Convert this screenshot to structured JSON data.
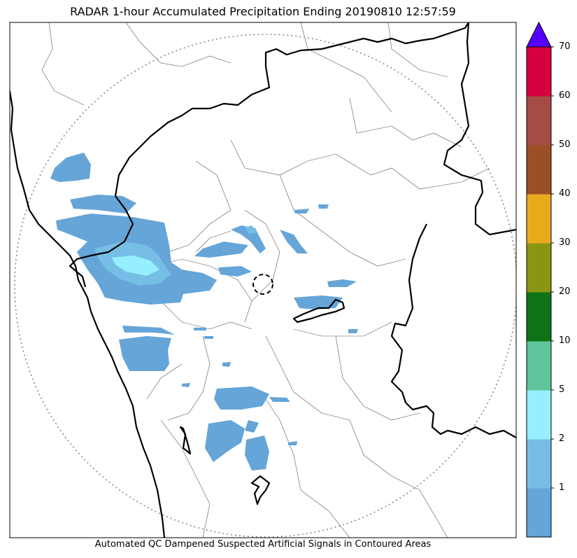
{
  "title": "RADAR 1-hour Accumulated Precipitation Ending 20190810 12:57:59",
  "subtitle": "Automated QC Dampened Suspected Artificial Signals in Contoured Areas",
  "colorbar": {
    "levels": [
      "1",
      "2",
      "5",
      "10",
      "20",
      "30",
      "40",
      "50",
      "60",
      "70"
    ],
    "colors": [
      "#65a5d8",
      "#76bee5",
      "#96eefe",
      "#5dc49b",
      "#0e7317",
      "#8b9514",
      "#e8aa1b",
      "#9a4f27",
      "#a64c45",
      "#d6003f"
    ],
    "extend_color": "#5500ff"
  },
  "rain": {
    "light": "#65a5d8",
    "medium": "#76bee5",
    "heavy": "#96eefe"
  }
}
